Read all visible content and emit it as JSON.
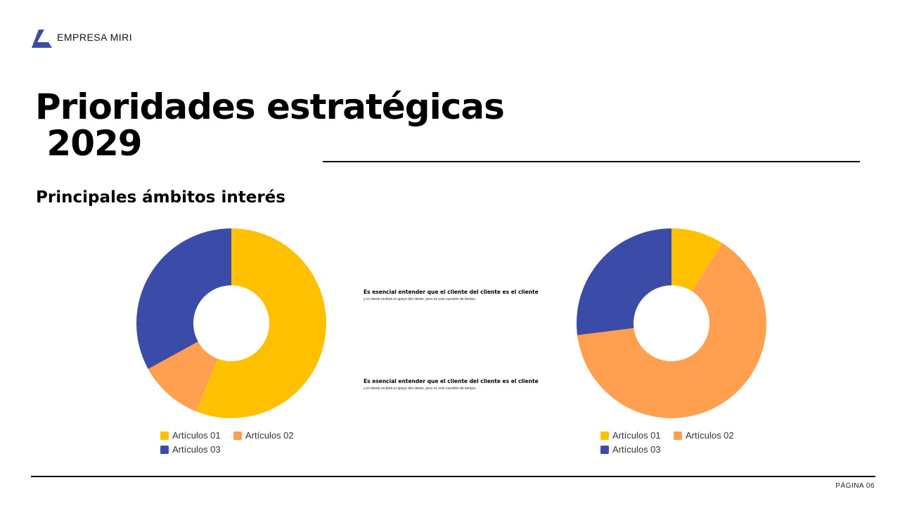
{
  "header": {
    "brand": "EMPRESA MIRI",
    "logo_color": "#3B4BA8"
  },
  "title": "Prioridades estratégicas\n 2029",
  "subtitle": "Principales ámbitos interés",
  "notes": [
    {
      "heading": "Es esencial entender que el cliente del cliente es el cliente",
      "body": "y el cliente recibirá el apoyo del cliente, pero es solo cuestión de tiempo."
    },
    {
      "heading": "Es esencial entender que el cliente del cliente es el cliente",
      "body": "y el cliente recibirá el apoyo del cliente, pero es solo cuestión de tiempo."
    }
  ],
  "chart_data": [
    {
      "type": "pie",
      "donut": true,
      "categories": [
        "Artículos 01",
        "Artículos 02",
        "Artículos 03"
      ],
      "values": [
        56,
        11,
        33
      ],
      "colors": [
        "#FFC000",
        "#FF9F4F",
        "#3B4BA8"
      ],
      "legend": "bottom"
    },
    {
      "type": "pie",
      "donut": true,
      "categories": [
        "Artículos 01",
        "Artículos 02",
        "Artículos 03"
      ],
      "values": [
        9,
        64,
        27
      ],
      "colors": [
        "#FFC000",
        "#FF9F4F",
        "#3B4BA8"
      ],
      "legend": "bottom"
    }
  ],
  "footer": {
    "page": "PÁGINA 06"
  }
}
